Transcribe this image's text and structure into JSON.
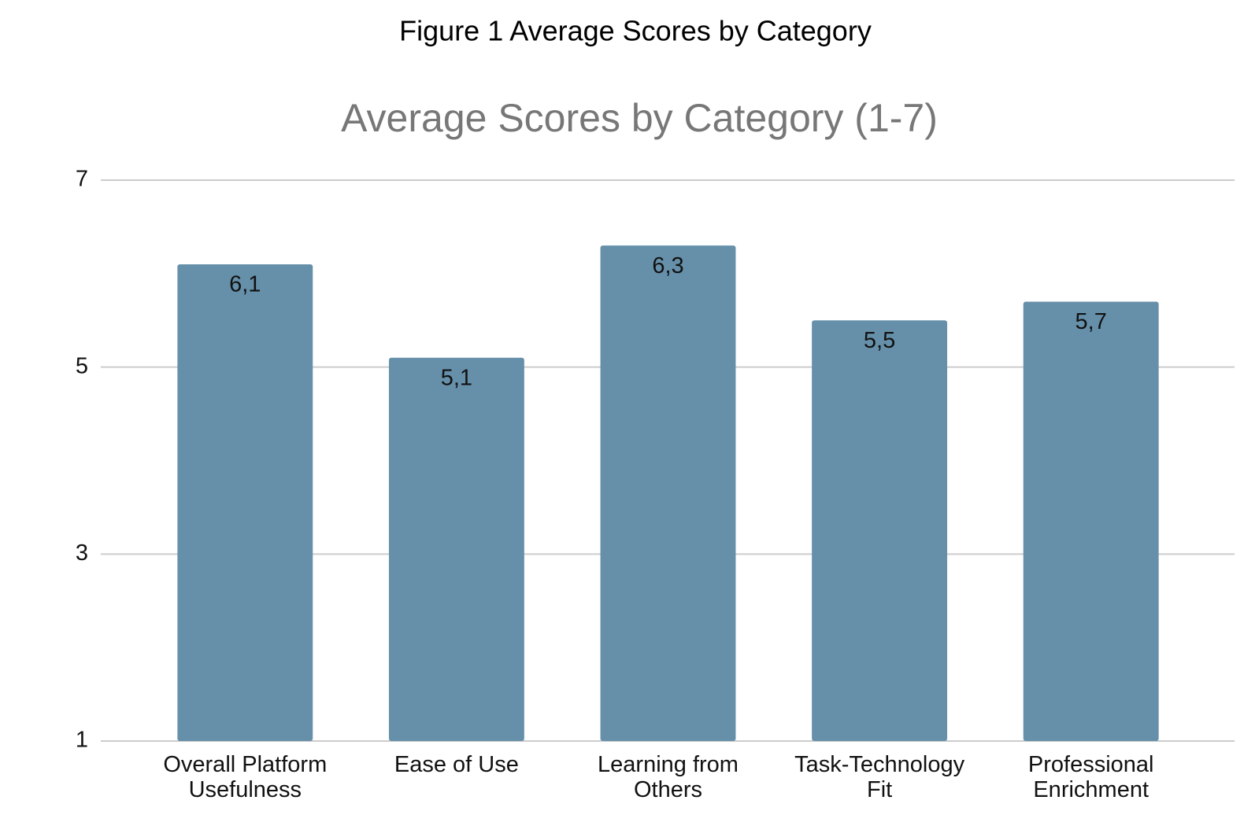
{
  "chart_data": {
    "type": "bar",
    "caption": "Figure 1 Average Scores by Category",
    "title": "Average Scores by Category (1-7)",
    "categories": [
      "Overall Platform Usefulness",
      "Ease of Use",
      "Learning from Others",
      "Task-Technology Fit",
      "Professional Enrichment"
    ],
    "values": [
      6.1,
      5.1,
      6.3,
      5.5,
      5.7
    ],
    "value_labels": [
      "6,1",
      "5,1",
      "6,3",
      "5,5",
      "5,7"
    ],
    "color": "#6690aa",
    "ylim": [
      1,
      7
    ],
    "yticks": [
      1,
      3,
      5,
      7
    ],
    "grid": true
  }
}
